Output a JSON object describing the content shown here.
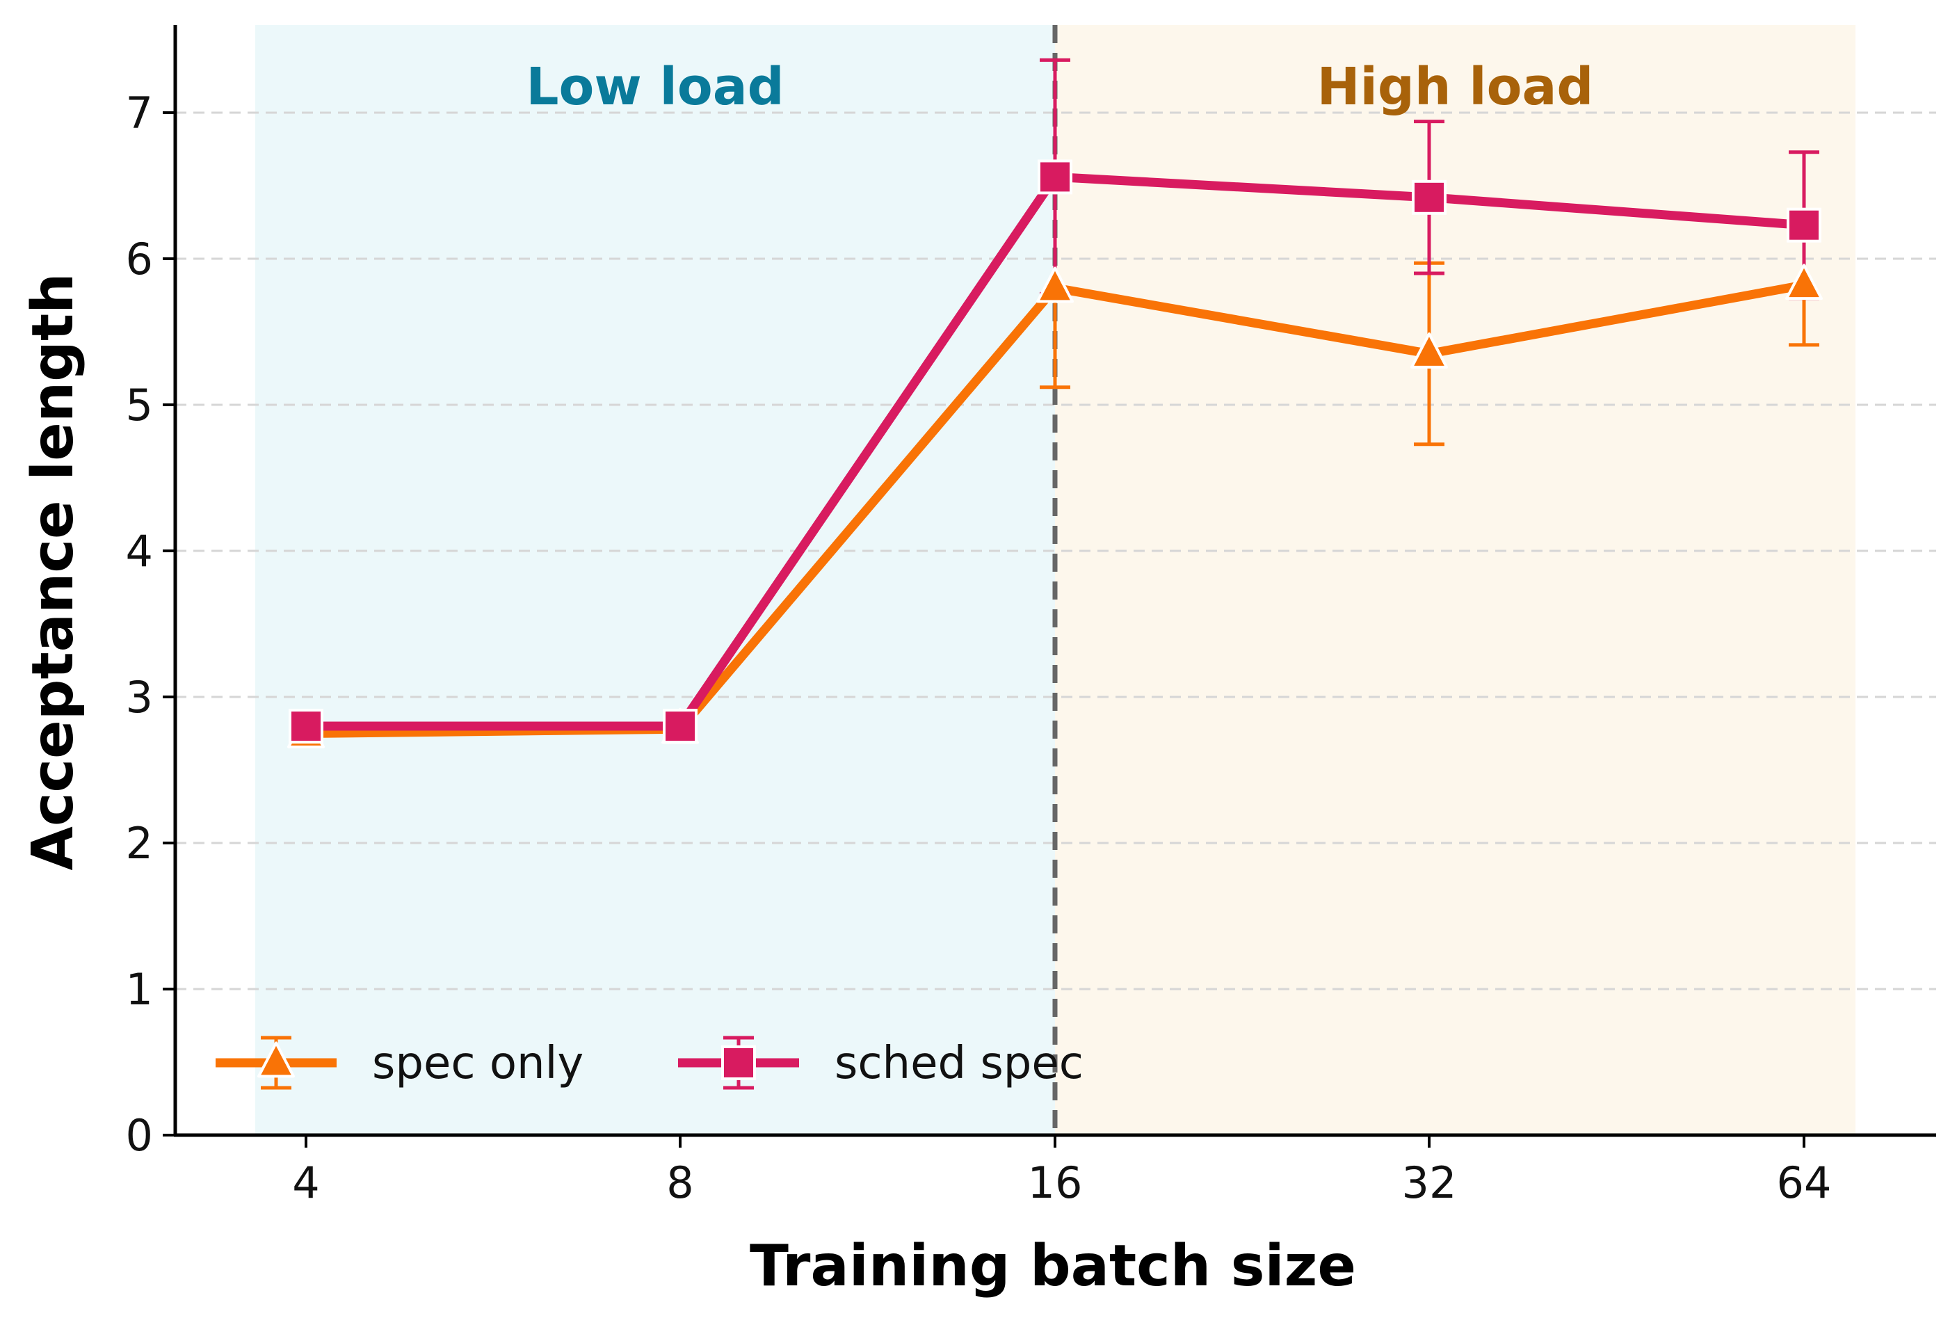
{
  "chart_data": {
    "type": "line",
    "title": "",
    "xlabel": "Training batch size",
    "ylabel": "Acceptance length",
    "categories": [
      "4",
      "8",
      "16",
      "32",
      "64"
    ],
    "ylim": [
      0,
      7.6
    ],
    "yticks": [
      "0",
      "1",
      "2",
      "3",
      "4",
      "5",
      "6",
      "7"
    ],
    "grid": "horizontal dashed",
    "legend_position": "bottom-left",
    "regions": [
      {
        "label": "Low load",
        "from_category": "4",
        "to_category": "16",
        "color": "#ecf8fa",
        "label_color": "#0a7a9a"
      },
      {
        "label": "High load",
        "from_category": "16",
        "to_category": "64",
        "color": "#fdf7ec",
        "label_color": "#a8620a"
      }
    ],
    "divider_at": "16",
    "series": [
      {
        "name": "spec only",
        "marker": "triangle",
        "color": "#f97306",
        "values": [
          2.75,
          2.78,
          5.8,
          5.35,
          5.82
        ],
        "err_low": [
          2.68,
          2.72,
          5.12,
          4.73,
          5.41
        ],
        "err_high": [
          2.82,
          2.84,
          6.48,
          5.97,
          6.23
        ]
      },
      {
        "name": "sched spec",
        "marker": "square",
        "color": "#d81b60",
        "values": [
          2.8,
          2.8,
          6.56,
          6.42,
          6.23
        ],
        "err_low": [
          2.76,
          2.76,
          5.76,
          5.9,
          5.73
        ],
        "err_high": [
          2.84,
          2.84,
          7.36,
          6.94,
          6.73
        ]
      }
    ]
  }
}
